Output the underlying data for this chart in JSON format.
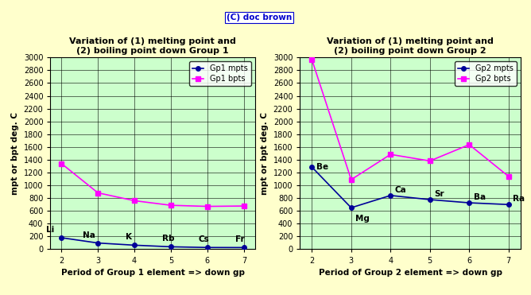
{
  "fig_bg": "#ffffcc",
  "plot_bg": "#ccffcc",
  "fig_width": 6.68,
  "fig_height": 3.71,
  "gp1_periods": [
    2,
    3,
    4,
    5,
    6,
    7
  ],
  "gp1_elements": [
    "Li",
    "Na",
    "K",
    "Rb",
    "Cs",
    "Fr"
  ],
  "gp1_mpts": [
    181,
    98,
    64,
    39,
    28,
    27
  ],
  "gp1_bpts": [
    1342,
    883,
    760,
    688,
    671,
    677
  ],
  "gp2_periods": [
    2,
    3,
    4,
    5,
    6,
    7
  ],
  "gp2_elements": [
    "Be",
    "Mg",
    "Ca",
    "Sr",
    "Ba",
    "Ra"
  ],
  "gp2_mpts": [
    1287,
    650,
    842,
    777,
    727,
    700
  ],
  "gp2_bpts": [
    2970,
    1090,
    1484,
    1382,
    1637,
    1140
  ],
  "mpt_color": "#000099",
  "bpt_color": "#ff00ff",
  "title1": "Variation of (1) melting point and\n(2) boiling point down Group 1",
  "title2": "Variation of (1) melting point and\n(2) boiling point down Group 2",
  "xlabel1": "Period of Group 1 element => down gp",
  "xlabel2": "Period of Group 2 element => down gp",
  "ylabel": "mpt or bpt deg. C",
  "legend1_mpts": "Gp1 mpts",
  "legend1_bpts": "Gp1 bpts",
  "legend2_mpts": "Gp2 mpts",
  "legend2_bpts": "Gp2 bpts",
  "watermark": "(C) doc brown",
  "watermark_color": "#0000cc",
  "ylim": [
    0,
    3000
  ],
  "yticks": [
    0,
    200,
    400,
    600,
    800,
    1000,
    1200,
    1400,
    1600,
    1800,
    2000,
    2200,
    2400,
    2600,
    2800,
    3000
  ],
  "xticks": [
    2,
    3,
    4,
    5,
    6,
    7
  ]
}
